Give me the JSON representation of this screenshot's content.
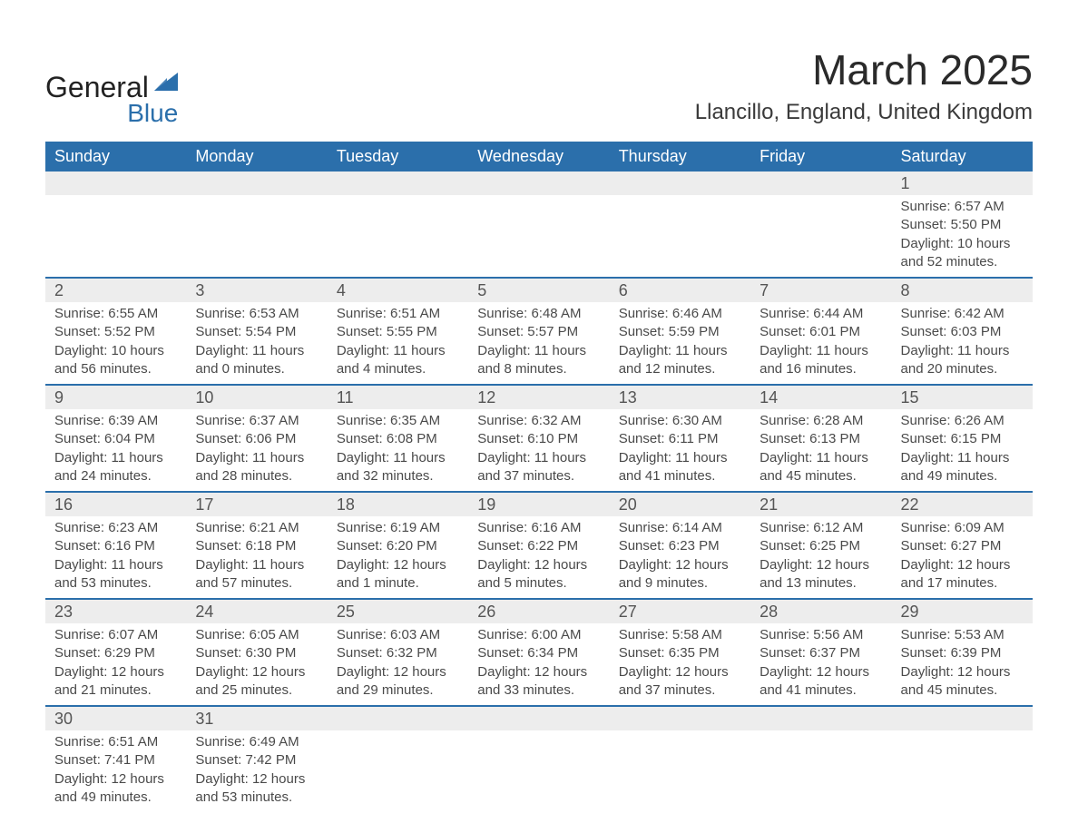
{
  "brand": {
    "word1": "General",
    "word2": "Blue",
    "sail_color": "#2b6fab"
  },
  "title": "March 2025",
  "location": "Llancillo, England, United Kingdom",
  "header_bg": "#2b6fab",
  "header_fg": "#ffffff",
  "daynum_bg": "#ededed",
  "row_divider": "#2b6fab",
  "text_color": "#4a4a4a",
  "day_headers": [
    "Sunday",
    "Monday",
    "Tuesday",
    "Wednesday",
    "Thursday",
    "Friday",
    "Saturday"
  ],
  "weeks": [
    [
      null,
      null,
      null,
      null,
      null,
      null,
      {
        "n": "1",
        "sunrise": "6:57 AM",
        "sunset": "5:50 PM",
        "daylight": "10 hours and 52 minutes."
      }
    ],
    [
      {
        "n": "2",
        "sunrise": "6:55 AM",
        "sunset": "5:52 PM",
        "daylight": "10 hours and 56 minutes."
      },
      {
        "n": "3",
        "sunrise": "6:53 AM",
        "sunset": "5:54 PM",
        "daylight": "11 hours and 0 minutes."
      },
      {
        "n": "4",
        "sunrise": "6:51 AM",
        "sunset": "5:55 PM",
        "daylight": "11 hours and 4 minutes."
      },
      {
        "n": "5",
        "sunrise": "6:48 AM",
        "sunset": "5:57 PM",
        "daylight": "11 hours and 8 minutes."
      },
      {
        "n": "6",
        "sunrise": "6:46 AM",
        "sunset": "5:59 PM",
        "daylight": "11 hours and 12 minutes."
      },
      {
        "n": "7",
        "sunrise": "6:44 AM",
        "sunset": "6:01 PM",
        "daylight": "11 hours and 16 minutes."
      },
      {
        "n": "8",
        "sunrise": "6:42 AM",
        "sunset": "6:03 PM",
        "daylight": "11 hours and 20 minutes."
      }
    ],
    [
      {
        "n": "9",
        "sunrise": "6:39 AM",
        "sunset": "6:04 PM",
        "daylight": "11 hours and 24 minutes."
      },
      {
        "n": "10",
        "sunrise": "6:37 AM",
        "sunset": "6:06 PM",
        "daylight": "11 hours and 28 minutes."
      },
      {
        "n": "11",
        "sunrise": "6:35 AM",
        "sunset": "6:08 PM",
        "daylight": "11 hours and 32 minutes."
      },
      {
        "n": "12",
        "sunrise": "6:32 AM",
        "sunset": "6:10 PM",
        "daylight": "11 hours and 37 minutes."
      },
      {
        "n": "13",
        "sunrise": "6:30 AM",
        "sunset": "6:11 PM",
        "daylight": "11 hours and 41 minutes."
      },
      {
        "n": "14",
        "sunrise": "6:28 AM",
        "sunset": "6:13 PM",
        "daylight": "11 hours and 45 minutes."
      },
      {
        "n": "15",
        "sunrise": "6:26 AM",
        "sunset": "6:15 PM",
        "daylight": "11 hours and 49 minutes."
      }
    ],
    [
      {
        "n": "16",
        "sunrise": "6:23 AM",
        "sunset": "6:16 PM",
        "daylight": "11 hours and 53 minutes."
      },
      {
        "n": "17",
        "sunrise": "6:21 AM",
        "sunset": "6:18 PM",
        "daylight": "11 hours and 57 minutes."
      },
      {
        "n": "18",
        "sunrise": "6:19 AM",
        "sunset": "6:20 PM",
        "daylight": "12 hours and 1 minute."
      },
      {
        "n": "19",
        "sunrise": "6:16 AM",
        "sunset": "6:22 PM",
        "daylight": "12 hours and 5 minutes."
      },
      {
        "n": "20",
        "sunrise": "6:14 AM",
        "sunset": "6:23 PM",
        "daylight": "12 hours and 9 minutes."
      },
      {
        "n": "21",
        "sunrise": "6:12 AM",
        "sunset": "6:25 PM",
        "daylight": "12 hours and 13 minutes."
      },
      {
        "n": "22",
        "sunrise": "6:09 AM",
        "sunset": "6:27 PM",
        "daylight": "12 hours and 17 minutes."
      }
    ],
    [
      {
        "n": "23",
        "sunrise": "6:07 AM",
        "sunset": "6:29 PM",
        "daylight": "12 hours and 21 minutes."
      },
      {
        "n": "24",
        "sunrise": "6:05 AM",
        "sunset": "6:30 PM",
        "daylight": "12 hours and 25 minutes."
      },
      {
        "n": "25",
        "sunrise": "6:03 AM",
        "sunset": "6:32 PM",
        "daylight": "12 hours and 29 minutes."
      },
      {
        "n": "26",
        "sunrise": "6:00 AM",
        "sunset": "6:34 PM",
        "daylight": "12 hours and 33 minutes."
      },
      {
        "n": "27",
        "sunrise": "5:58 AM",
        "sunset": "6:35 PM",
        "daylight": "12 hours and 37 minutes."
      },
      {
        "n": "28",
        "sunrise": "5:56 AM",
        "sunset": "6:37 PM",
        "daylight": "12 hours and 41 minutes."
      },
      {
        "n": "29",
        "sunrise": "5:53 AM",
        "sunset": "6:39 PM",
        "daylight": "12 hours and 45 minutes."
      }
    ],
    [
      {
        "n": "30",
        "sunrise": "6:51 AM",
        "sunset": "7:41 PM",
        "daylight": "12 hours and 49 minutes."
      },
      {
        "n": "31",
        "sunrise": "6:49 AM",
        "sunset": "7:42 PM",
        "daylight": "12 hours and 53 minutes."
      },
      null,
      null,
      null,
      null,
      null
    ]
  ],
  "labels": {
    "sunrise": "Sunrise: ",
    "sunset": "Sunset: ",
    "daylight": "Daylight: "
  }
}
